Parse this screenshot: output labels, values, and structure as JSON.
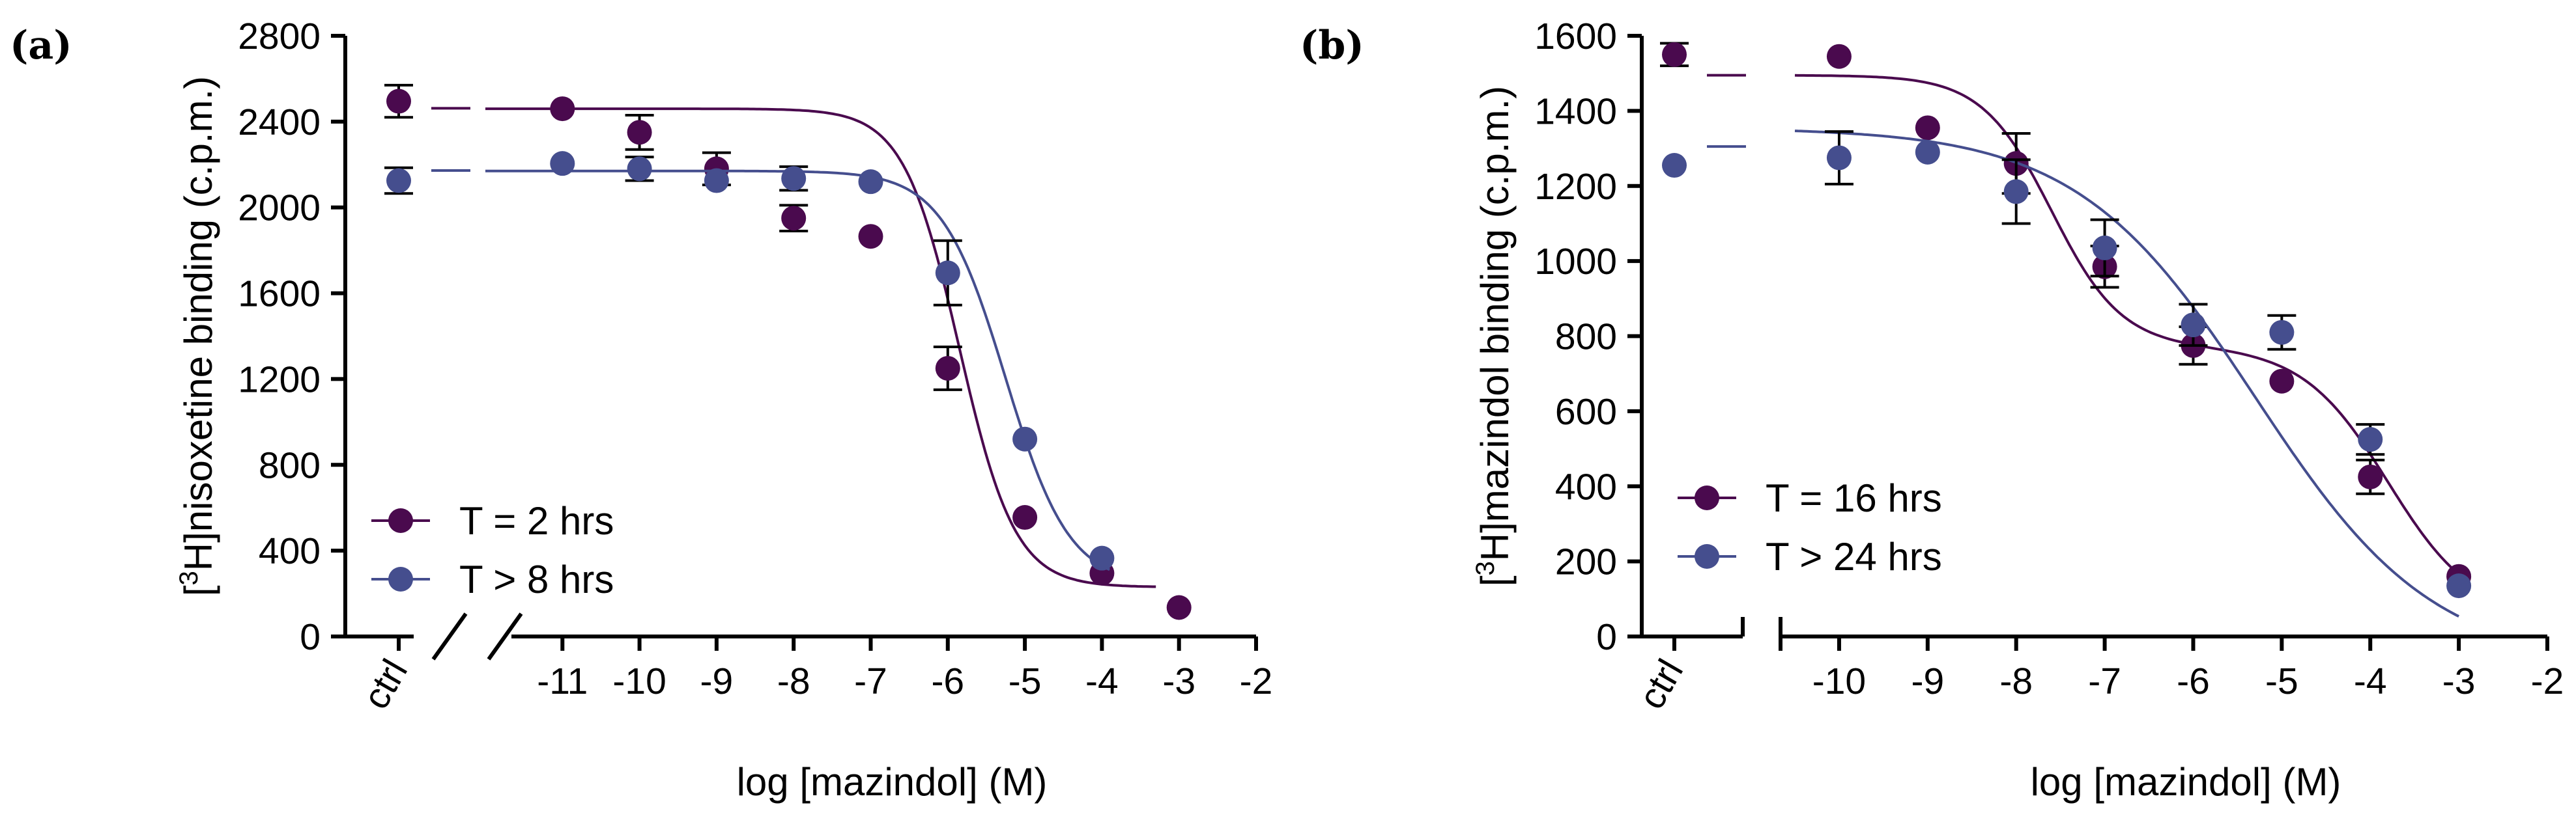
{
  "chart_data": [
    {
      "panel_label": "(a)",
      "type": "scatter",
      "xlabel": "log [mazindol] (M)",
      "ylabel_sup": "3",
      "ylabel_rest": "H]nisoxetine binding (c.p.m.)",
      "ylim": [
        0,
        2800
      ],
      "y_ticks": [
        0,
        400,
        800,
        1200,
        1600,
        2000,
        2400,
        2800
      ],
      "x_range": [
        -12.0,
        -2
      ],
      "x_ticks": [
        -11,
        -10,
        -9,
        -8,
        -7,
        -6,
        -5,
        -4,
        -3,
        -2
      ],
      "x_tick_labels": [
        "-11",
        "-10",
        "-9",
        "-8",
        "-7",
        "-6",
        "-5",
        "-4",
        "-3",
        "-2"
      ],
      "ctrl_label": "ctrl",
      "series": [
        {
          "name": "T = 2 hrs",
          "color": "#4a0a4e",
          "ctrl": {
            "y": 2495,
            "err": 75
          },
          "points": [
            {
              "x": -11,
              "y": 2460,
              "err": 0
            },
            {
              "x": -10,
              "y": 2350,
              "err": 80
            },
            {
              "x": -9,
              "y": 2180,
              "err": 75
            },
            {
              "x": -8,
              "y": 1950,
              "err": 60
            },
            {
              "x": -7,
              "y": 1865,
              "err": 0
            },
            {
              "x": -6,
              "y": 1250,
              "err": 100
            },
            {
              "x": -5,
              "y": 555,
              "err": 0
            },
            {
              "x": -4,
              "y": 295,
              "err": 0
            },
            {
              "x": -3,
              "y": 135,
              "err": 0
            }
          ],
          "fit": {
            "kind": "one-site",
            "bottom": 230,
            "top": 2460,
            "logEC50": -5.85,
            "hill": 1.2,
            "x_from": -12.0,
            "x_to": -3.3,
            "ctrl_line_y": 2462
          }
        },
        {
          "name": "T > 8 hrs",
          "color": "#454e8e",
          "ctrl": {
            "y": 2125,
            "err": 60
          },
          "points": [
            {
              "x": -11,
              "y": 2205,
              "err": 0
            },
            {
              "x": -10,
              "y": 2180,
              "err": 55
            },
            {
              "x": -9,
              "y": 2125,
              "err": 0
            },
            {
              "x": -8,
              "y": 2135,
              "err": 55
            },
            {
              "x": -7,
              "y": 2120,
              "err": 0
            },
            {
              "x": -6,
              "y": 1695,
              "err": 150
            },
            {
              "x": -5,
              "y": 920,
              "err": 0
            },
            {
              "x": -4,
              "y": 365,
              "err": 0
            }
          ],
          "fit": {
            "kind": "one-site",
            "bottom": 240,
            "top": 2170,
            "logEC50": -5.25,
            "hill": 1.05,
            "x_from": -12.0,
            "x_to": -3.9,
            "ctrl_line_y": 2172
          }
        }
      ]
    },
    {
      "panel_label": "(b)",
      "type": "scatter",
      "xlabel": "log [mazindol] (M)",
      "ylabel_sup": "3",
      "ylabel_rest": "H]mazindol binding (c.p.m.)",
      "ylim": [
        0,
        1600
      ],
      "y_ticks": [
        0,
        200,
        400,
        600,
        800,
        1000,
        1200,
        1400,
        1600
      ],
      "x_range": [
        -10.5,
        -2
      ],
      "x_ticks": [
        -10,
        -9,
        -8,
        -7,
        -6,
        -5,
        -4,
        -3,
        -2
      ],
      "x_tick_labels": [
        "-10",
        "-9",
        "-8",
        "-7",
        "-6",
        "-5",
        "-4",
        "-3",
        "-2"
      ],
      "ctrl_label": "ctrl",
      "series": [
        {
          "name": "T = 16 hrs",
          "color": "#4a0a4e",
          "ctrl": {
            "y": 1550,
            "err": 30
          },
          "points": [
            {
              "x": -10,
              "y": 1545,
              "err": 0
            },
            {
              "x": -9,
              "y": 1355,
              "err": 0
            },
            {
              "x": -8,
              "y": 1260,
              "err": 80
            },
            {
              "x": -7,
              "y": 985,
              "err": 55
            },
            {
              "x": -6,
              "y": 775,
              "err": 50
            },
            {
              "x": -5,
              "y": 680,
              "err": 0
            },
            {
              "x": -4,
              "y": 425,
              "err": 45
            },
            {
              "x": -3,
              "y": 160,
              "err": 0
            }
          ],
          "fit": {
            "kind": "two-site",
            "bottom": 50,
            "top": 1495,
            "frac": 0.5,
            "logEC50_1": -7.6,
            "logEC50_2": -3.8,
            "hill1": 1.1,
            "hill2": 0.9,
            "x_from": -10.5,
            "x_to": -3,
            "ctrl_line_y": 1495
          }
        },
        {
          "name": "T > 24 hrs",
          "color": "#454e8e",
          "ctrl": {
            "y": 1255,
            "err": 0
          },
          "points": [
            {
              "x": -10,
              "y": 1275,
              "err": 70
            },
            {
              "x": -9,
              "y": 1290,
              "err": 0
            },
            {
              "x": -8,
              "y": 1185,
              "err": 85
            },
            {
              "x": -7,
              "y": 1035,
              "err": 75
            },
            {
              "x": -6,
              "y": 830,
              "err": 55
            },
            {
              "x": -5,
              "y": 810,
              "err": 45
            },
            {
              "x": -4,
              "y": 525,
              "err": 40
            },
            {
              "x": -3,
              "y": 135,
              "err": 0
            }
          ],
          "fit": {
            "kind": "one-site",
            "bottom": -80,
            "top": 1355,
            "logEC50": -5.3,
            "hill": 0.43,
            "x_from": -10.5,
            "x_to": -3,
            "ctrl_line_y": 1305
          }
        }
      ]
    }
  ]
}
